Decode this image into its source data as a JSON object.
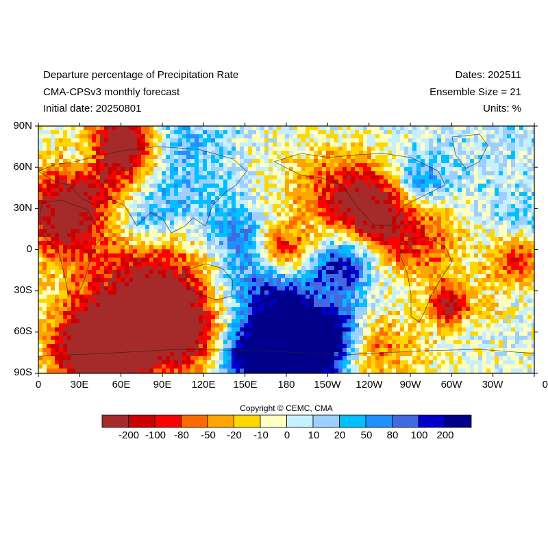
{
  "header": {
    "title": "Departure percentage of Precipitation Rate",
    "model": "CMA-CPSv3 monthly forecast",
    "initial_date": "Initial date: 20250801",
    "dates": "Dates: 202511",
    "ensemble": "Ensemble Size = 21",
    "units": "Units: %"
  },
  "axes": {
    "lat_labels": [
      "90N",
      "60N",
      "30N",
      "0",
      "30S",
      "60S",
      "90S"
    ],
    "lon_labels": [
      "0",
      "30E",
      "60E",
      "90E",
      "120E",
      "150E",
      "180",
      "150W",
      "120W",
      "90W",
      "60W",
      "30W",
      "0"
    ]
  },
  "copyright": "Copyright © CEMC, CMA",
  "colorbar": {
    "colors": [
      "#A52A2A",
      "#CD0000",
      "#FF0000",
      "#FF6A00",
      "#FFA500",
      "#FFD700",
      "#FFFFC0",
      "#C6EFFF",
      "#9DCFFF",
      "#00BFFF",
      "#1E90FF",
      "#4169E1",
      "#0000CD",
      "#00008B"
    ],
    "ticks": [
      "-200",
      "-100",
      "-80",
      "-50",
      "-20",
      "-10",
      "0",
      "10",
      "20",
      "50",
      "80",
      "100",
      "200"
    ]
  }
}
